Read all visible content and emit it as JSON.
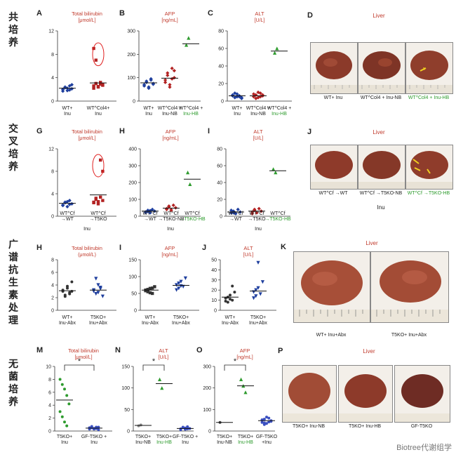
{
  "row_labels": [
    "共培养",
    "交叉培养",
    "广谱抗生素处理",
    "无菌培养"
  ],
  "panels": {
    "A": {
      "letter": "A",
      "title": "Total bilirubin",
      "unit": "[μmol/L]",
      "cats": [
        "WT+ Inu",
        "WT^Col4+ Inu"
      ]
    },
    "B": {
      "letter": "B",
      "title": "AFP",
      "unit": "[ng/mL]",
      "cats": [
        "WT+ Inu",
        "WT^Col4 + Inu-NB",
        "WT^Col4 + Inu-HB"
      ]
    },
    "C": {
      "letter": "C",
      "title": "ALT",
      "unit": "[U/L]",
      "cats": [
        "WT+ Inu",
        "WT^Col4 + Inu-NB",
        "WT^Col4 + Inu-HB"
      ]
    },
    "D": {
      "letter": "D",
      "title": "Liver",
      "caps": [
        "WT+ Inu",
        "WT^Col4 + Inu-NB",
        "WT^Col4 + Inu-HB"
      ]
    },
    "G": {
      "letter": "G",
      "title": "Total bilirubin",
      "unit": "[μmol/L]",
      "cats": [
        "WT^Cf →WT",
        "WT^Cf →T5KO"
      ],
      "group": "Inu"
    },
    "H": {
      "letter": "H",
      "title": "AFP",
      "unit": "[ng/mL]",
      "cats": [
        "WT^Cf →WT",
        "WT^Cf →T5KO-NB",
        "WT^Cf →T5KO-HB"
      ],
      "group": "Inu"
    },
    "I": {
      "letter": "I",
      "title": "ALT",
      "unit": "[U/L]",
      "cats": [
        "WT^Cf →WT",
        "WT^Cf →T5KO",
        "WT^Cf →T5KO-HB"
      ],
      "group": "Inu"
    },
    "J": {
      "letter": "J",
      "title": "Liver",
      "caps": [
        "WT^Cf →WT",
        "WT^Cf →T5KO-NB",
        "WT^Cf →T5KO-HB"
      ],
      "group": "Inu"
    },
    "H2": {
      "letter": "H",
      "title": "Total bilirubin",
      "unit": "(μmol/L)",
      "cats": [
        "WT+ Inu-Abx",
        "T5KO+ Inu+Abx"
      ]
    },
    "I2": {
      "letter": "I",
      "title": "AFP",
      "unit": "[ng/mL]",
      "cats": [
        "WT+ Inu-Abx",
        "T5KO+ Inu+Abx"
      ]
    },
    "J2": {
      "letter": "J",
      "title": "ALT",
      "unit": "[U/L]",
      "cats": [
        "WT+ Inu-Abx",
        "T5KO+ Inu+Abx"
      ]
    },
    "K": {
      "letter": "K",
      "title": "Liver",
      "caps": [
        "WT+ Inu+Abx",
        "T5KO+ Inu+Abx"
      ]
    },
    "M": {
      "letter": "M",
      "title": "Total bilirubin",
      "unit": "[μmol/L]",
      "cats": [
        "T5KO+ Inu",
        "GF-T5KO + Inu"
      ],
      "sig": "*"
    },
    "N": {
      "letter": "N",
      "title": "ALT",
      "unit": "[U/L]",
      "cats": [
        "T5KO+ Inu-NB",
        "T5KO+ Inu-HB",
        "GF-T5KO + Inu"
      ],
      "sig": "*"
    },
    "O": {
      "letter": "O",
      "title": "AFP",
      "unit": "[ng/mL]",
      "cats": [
        "T5KO+ Inu-NB",
        "T5KO+ Inu-HB",
        "GF-T5KO +Inu"
      ],
      "sig": "*"
    },
    "P": {
      "letter": "P",
      "title": "Liver",
      "caps": [
        "T5KO+ Inu-NB",
        "T5KO+ Inu-HB",
        "GF-T5KO"
      ]
    }
  },
  "watermark": "Biotree代谢组学",
  "chart_data": [
    {
      "panel": "A",
      "type": "scatter",
      "title": "Total bilirubin",
      "ylabel": "[μmol/L]",
      "ylim": [
        0,
        12
      ],
      "yticks": [
        0,
        4,
        8,
        12
      ],
      "categories": [
        "WT+ Inu",
        "WT^Col4+ Inu"
      ],
      "series": [
        {
          "values": [
            2.0,
            2.3,
            1.8,
            2.6,
            2.1,
            1.7,
            2.4,
            2.2,
            1.9,
            2.8,
            2.0
          ],
          "mean": 2.2,
          "color": "#1f3f9e",
          "marker": "diamond"
        },
        {
          "values": [
            2.6,
            3.0,
            2.4,
            3.2,
            2.8,
            2.2,
            3.0,
            2.5,
            2.9,
            2.7,
            9.0,
            7.0
          ],
          "mean": 3.1,
          "color": "#b22222",
          "marker": "square",
          "highlight": [
            10,
            11
          ]
        }
      ]
    },
    {
      "panel": "B",
      "type": "scatter",
      "title": "AFP",
      "ylabel": "[ng/mL]",
      "ylim": [
        0,
        300
      ],
      "yticks": [
        0,
        100,
        200,
        300
      ],
      "categories": [
        "WT+ Inu",
        "WT^Col4 + Inu-NB",
        "WT^Col4 + Inu-HB"
      ],
      "series": [
        {
          "values": [
            70,
            85,
            60,
            95,
            75,
            65,
            80,
            55,
            90,
            72
          ],
          "mean": 78,
          "color": "#1f3f9e",
          "marker": "diamond"
        },
        {
          "values": [
            90,
            120,
            70,
            140,
            100,
            80,
            110,
            60,
            95,
            130
          ],
          "mean": 98,
          "color": "#b22222",
          "marker": "diamond"
        },
        {
          "values": [
            240,
            270
          ],
          "mean": 245,
          "color": "#2e9b2e",
          "marker": "triangle"
        }
      ]
    },
    {
      "panel": "C",
      "type": "scatter",
      "title": "ALT",
      "ylabel": "[U/L]",
      "ylim": [
        0,
        80
      ],
      "yticks": [
        0,
        20,
        40,
        60,
        80
      ],
      "categories": [
        "WT+ Inu",
        "WT^Col4 + Inu-NB",
        "WT^Col4 + Inu-HB"
      ],
      "series": [
        {
          "values": [
            6,
            4,
            8,
            5,
            3,
            7,
            9,
            5,
            6,
            4
          ],
          "mean": 6,
          "color": "#1f3f9e",
          "marker": "diamond"
        },
        {
          "values": [
            5,
            7,
            4,
            9,
            6,
            8,
            3,
            10,
            5,
            7
          ],
          "mean": 6,
          "color": "#b22222",
          "marker": "diamond"
        },
        {
          "values": [
            55,
            60
          ],
          "mean": 57,
          "color": "#2e9b2e",
          "marker": "triangle"
        }
      ]
    },
    {
      "panel": "G",
      "type": "scatter",
      "title": "Total bilirubin",
      "ylabel": "[μmol/L]",
      "ylim": [
        0,
        12
      ],
      "yticks": [
        0,
        4,
        8,
        12
      ],
      "categories": [
        "WT^Cf →WT",
        "WT^Cf →T5KO"
      ],
      "series": [
        {
          "values": [
            2.0,
            2.5,
            1.7,
            2.8,
            2.2,
            1.9,
            2.4,
            2.6,
            2.1
          ],
          "mean": 2.3,
          "color": "#1f3f9e",
          "marker": "diamond"
        },
        {
          "values": [
            2.4,
            3.0,
            2.2,
            3.4,
            2.8,
            2.5,
            3.2,
            2.6,
            10.0,
            8.0
          ],
          "mean": 3.8,
          "color": "#b22222",
          "marker": "square",
          "highlight": [
            8,
            9
          ]
        }
      ]
    },
    {
      "panel": "H",
      "type": "scatter",
      "title": "AFP",
      "ylabel": "[ng/mL]",
      "ylim": [
        0,
        400
      ],
      "yticks": [
        0,
        100,
        200,
        300,
        400
      ],
      "categories": [
        "WT^Cf →WT",
        "WT^Cf →T5KO-NB",
        "WT^Cf →T5KO-HB"
      ],
      "series": [
        {
          "values": [
            25,
            35,
            20,
            40,
            30,
            22,
            28,
            33
          ],
          "mean": 30,
          "color": "#1f3f9e",
          "marker": "diamond"
        },
        {
          "values": [
            40,
            55,
            35,
            65,
            50,
            45,
            60,
            38
          ],
          "mean": 48,
          "color": "#b22222",
          "marker": "diamond"
        },
        {
          "values": [
            260,
            190
          ],
          "mean": 220,
          "color": "#2e9b2e",
          "marker": "triangle"
        }
      ]
    },
    {
      "panel": "I",
      "type": "scatter",
      "title": "ALT",
      "ylabel": "[U/L]",
      "ylim": [
        0,
        80
      ],
      "yticks": [
        0,
        20,
        40,
        60,
        80
      ],
      "categories": [
        "WT^Cf →WT",
        "WT^Cf →T5KO",
        "WT^Cf →T5KO-HB"
      ],
      "series": [
        {
          "values": [
            4,
            6,
            3,
            8,
            5,
            7,
            4
          ],
          "mean": 5,
          "color": "#1f3f9e",
          "marker": "diamond"
        },
        {
          "values": [
            5,
            7,
            4,
            9,
            6,
            3,
            8
          ],
          "mean": 6,
          "color": "#b22222",
          "marker": "diamond"
        },
        {
          "values": [
            56,
            52
          ],
          "mean": 54,
          "color": "#2e9b2e",
          "marker": "triangle"
        }
      ]
    },
    {
      "panel": "H2",
      "type": "scatter",
      "title": "Total bilirubin",
      "ylabel": "(μmol/L)",
      "ylim": [
        0,
        8
      ],
      "yticks": [
        0,
        2,
        4,
        6,
        8
      ],
      "categories": [
        "WT+ Inu-Abx",
        "T5KO+ Inu+Abx"
      ],
      "series": [
        {
          "values": [
            3.0,
            2.4,
            3.8,
            2.8,
            4.5,
            3.2,
            2.2,
            3.5,
            2.6,
            3.0
          ],
          "mean": 3.1,
          "color": "#333333",
          "marker": "circle"
        },
        {
          "values": [
            3.2,
            2.6,
            4.0,
            3.6,
            2.2,
            3.0,
            5.0,
            2.8,
            3.4
          ],
          "mean": 3.2,
          "color": "#1f3f9e",
          "marker": "tri-down"
        }
      ]
    },
    {
      "panel": "I2",
      "type": "scatter",
      "title": "AFP",
      "ylabel": "[ng/mL]",
      "ylim": [
        0,
        150
      ],
      "yticks": [
        0,
        50,
        100,
        150
      ],
      "categories": [
        "WT+ Inu-Abx",
        "T5KO+ Inu+Abx"
      ],
      "series": [
        {
          "values": [
            60,
            55,
            65,
            50,
            70,
            58,
            62,
            52,
            66
          ],
          "mean": 60,
          "color": "#333333",
          "marker": "square"
        },
        {
          "values": [
            75,
            65,
            85,
            70,
            95,
            60,
            80,
            72
          ],
          "mean": 74,
          "color": "#1f3f9e",
          "marker": "tri-down"
        }
      ]
    },
    {
      "panel": "J2",
      "type": "scatter",
      "title": "ALT",
      "ylabel": "[U/L]",
      "ylim": [
        0,
        50
      ],
      "yticks": [
        0,
        10,
        20,
        30,
        40,
        50
      ],
      "categories": [
        "WT+ Inu-Abx",
        "T5KO+ Inu+Abx"
      ],
      "series": [
        {
          "values": [
            12,
            8,
            15,
            10,
            18,
            9,
            13,
            11,
            24
          ],
          "mean": 13,
          "color": "#333333",
          "marker": "circle"
        },
        {
          "values": [
            18,
            14,
            22,
            16,
            28,
            12,
            20,
            47
          ],
          "mean": 19,
          "color": "#1f3f9e",
          "marker": "tri-down"
        }
      ]
    },
    {
      "panel": "M",
      "type": "scatter",
      "title": "Total bilirubin",
      "ylabel": "[μmol/L]",
      "ylim": [
        0,
        10
      ],
      "yticks": [
        0,
        2,
        4,
        6,
        8,
        10
      ],
      "categories": [
        "T5KO+ Inu",
        "GF-T5KO + Inu"
      ],
      "series": [
        {
          "values": [
            8.0,
            7.2,
            6.5,
            5.5,
            4.2,
            3.0,
            2.2,
            1.4,
            0.8
          ],
          "mean": 4.8,
          "color": "#2e9b2e",
          "marker": "circle"
        },
        {
          "values": [
            0.3,
            0.5,
            0.4,
            0.6,
            0.2,
            0.5,
            0.7,
            0.3,
            0.4,
            0.6,
            0.5
          ],
          "mean": 0.45,
          "color": "#3a4fc0",
          "marker": "circle"
        }
      ]
    },
    {
      "panel": "N",
      "type": "scatter",
      "title": "ALT",
      "ylabel": "[U/L]",
      "ylim": [
        0,
        150
      ],
      "yticks": [
        0,
        50,
        100,
        150
      ],
      "categories": [
        "T5KO+ Inu-NB",
        "T5KO+ Inu-HB",
        "GF-T5KO + Inu"
      ],
      "series": [
        {
          "values": [
            12,
            14
          ],
          "mean": 13,
          "color": "#888888",
          "marker": "circle"
        },
        {
          "values": [
            120,
            100
          ],
          "mean": 110,
          "color": "#2e9b2e",
          "marker": "triangle"
        },
        {
          "values": [
            5,
            8,
            4,
            10,
            6,
            3,
            9,
            7,
            5
          ],
          "mean": 6,
          "color": "#3a4fc0",
          "marker": "circle"
        }
      ]
    },
    {
      "panel": "O",
      "type": "scatter",
      "title": "AFP",
      "ylabel": "[ng/mL]",
      "ylim": [
        0,
        300
      ],
      "yticks": [
        0,
        100,
        200,
        300
      ],
      "categories": [
        "T5KO+ Inu-NB",
        "T5KO+ Inu-HB",
        "GF-T5KO +Inu"
      ],
      "series": [
        {
          "values": [
            40
          ],
          "mean": 40,
          "color": "#444444",
          "marker": "circle"
        },
        {
          "values": [
            240,
            210,
            180
          ],
          "mean": 210,
          "color": "#2e9b2e",
          "marker": "triangle"
        },
        {
          "values": [
            40,
            55,
            35,
            60,
            45,
            50,
            30,
            65,
            42,
            48,
            52,
            38
          ],
          "mean": 48,
          "color": "#3a4fc0",
          "marker": "circle"
        }
      ]
    }
  ]
}
